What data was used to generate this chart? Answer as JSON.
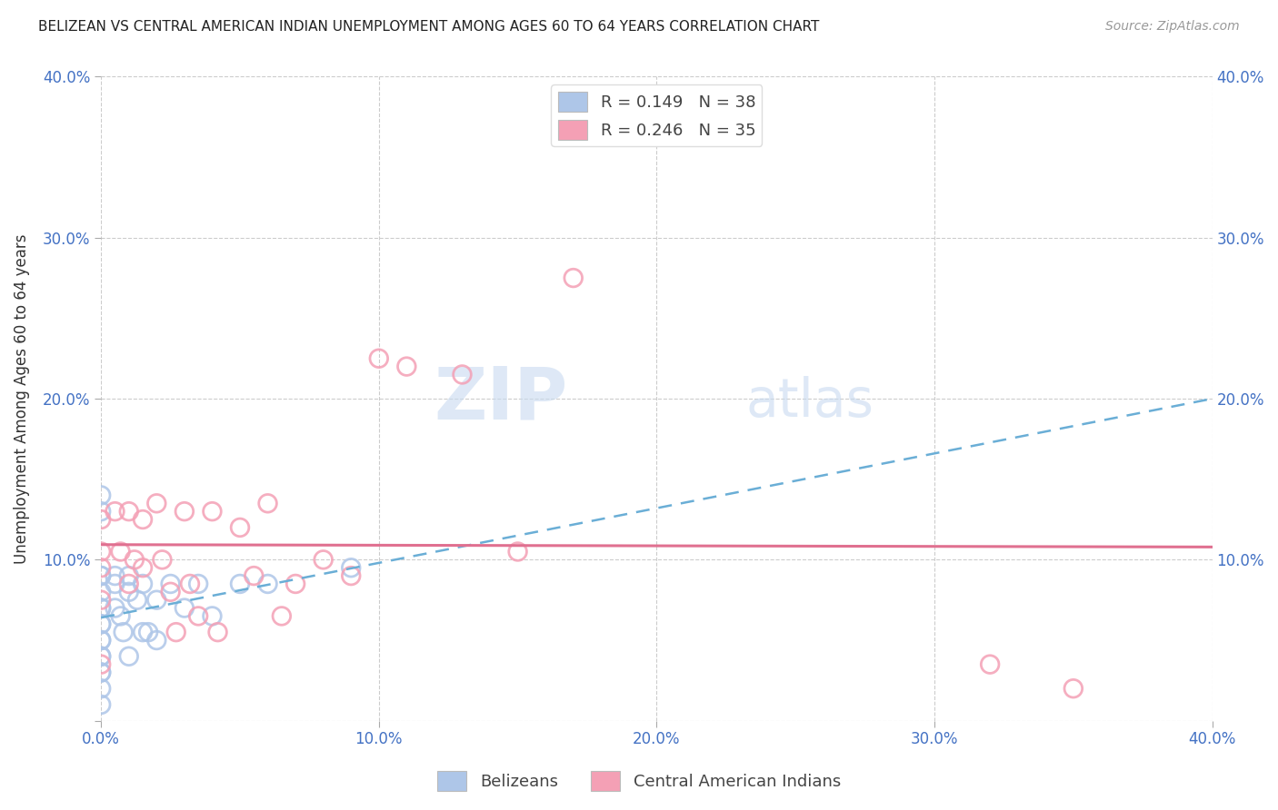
{
  "title": "BELIZEAN VS CENTRAL AMERICAN INDIAN UNEMPLOYMENT AMONG AGES 60 TO 64 YEARS CORRELATION CHART",
  "source": "Source: ZipAtlas.com",
  "ylabel": "Unemployment Among Ages 60 to 64 years",
  "xlim": [
    0.0,
    0.4
  ],
  "ylim": [
    0.0,
    0.4
  ],
  "xticks": [
    0.0,
    0.1,
    0.2,
    0.3,
    0.4
  ],
  "yticks": [
    0.0,
    0.1,
    0.2,
    0.3,
    0.4
  ],
  "xticklabels": [
    "0.0%",
    "10.0%",
    "20.0%",
    "30.0%",
    "40.0%"
  ],
  "yticklabels": [
    "",
    "10.0%",
    "20.0%",
    "30.0%",
    "40.0%"
  ],
  "right_yticklabels": [
    "",
    "10.0%",
    "20.0%",
    "30.0%",
    "40.0%"
  ],
  "belizean_R": 0.149,
  "belizean_N": 38,
  "central_american_R": 0.246,
  "central_american_N": 35,
  "belizean_color": "#aec6e8",
  "central_american_color": "#f4a0b5",
  "belizean_line_color": "#6aaed6",
  "central_american_line_color": "#e07090",
  "background_color": "#ffffff",
  "watermark_zip": "ZIP",
  "watermark_atlas": "atlas",
  "belizean_x": [
    0.0,
    0.0,
    0.0,
    0.0,
    0.0,
    0.0,
    0.0,
    0.0,
    0.0,
    0.0,
    0.0,
    0.0,
    0.0,
    0.0,
    0.0,
    0.0,
    0.0,
    0.005,
    0.005,
    0.005,
    0.007,
    0.008,
    0.01,
    0.01,
    0.01,
    0.013,
    0.015,
    0.015,
    0.017,
    0.02,
    0.02,
    0.025,
    0.03,
    0.035,
    0.04,
    0.05,
    0.06,
    0.09
  ],
  "belizean_y": [
    0.14,
    0.13,
    0.09,
    0.09,
    0.08,
    0.07,
    0.07,
    0.06,
    0.06,
    0.05,
    0.05,
    0.04,
    0.04,
    0.03,
    0.03,
    0.02,
    0.01,
    0.09,
    0.085,
    0.07,
    0.065,
    0.055,
    0.09,
    0.08,
    0.04,
    0.075,
    0.085,
    0.055,
    0.055,
    0.075,
    0.05,
    0.085,
    0.07,
    0.085,
    0.065,
    0.085,
    0.085,
    0.095
  ],
  "central_x": [
    0.0,
    0.0,
    0.0,
    0.0,
    0.0,
    0.005,
    0.007,
    0.01,
    0.01,
    0.012,
    0.015,
    0.015,
    0.02,
    0.022,
    0.025,
    0.027,
    0.03,
    0.032,
    0.035,
    0.04,
    0.042,
    0.05,
    0.055,
    0.06,
    0.065,
    0.07,
    0.08,
    0.09,
    0.1,
    0.11,
    0.13,
    0.15,
    0.17,
    0.32,
    0.35
  ],
  "central_y": [
    0.125,
    0.105,
    0.095,
    0.075,
    0.035,
    0.13,
    0.105,
    0.13,
    0.085,
    0.1,
    0.125,
    0.095,
    0.135,
    0.1,
    0.08,
    0.055,
    0.13,
    0.085,
    0.065,
    0.13,
    0.055,
    0.12,
    0.09,
    0.135,
    0.065,
    0.085,
    0.1,
    0.09,
    0.225,
    0.22,
    0.215,
    0.105,
    0.275,
    0.035,
    0.02
  ]
}
